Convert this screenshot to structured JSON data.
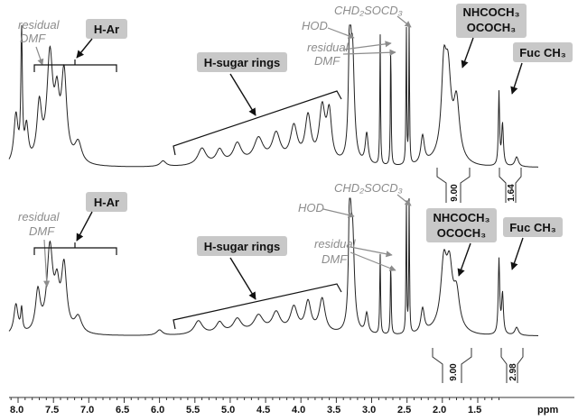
{
  "chart_data": {
    "type": "line",
    "title": "",
    "xlabel": "ppm",
    "ylabel": "",
    "xlim": [
      8.4,
      0.75
    ],
    "x_reversed": true,
    "grid": false,
    "x_ticks": [
      "8.0",
      "7.5",
      "7.0",
      "6.5",
      "6.0",
      "5.5",
      "5.0",
      "4.5",
      "4.0",
      "3.5",
      "3.0",
      "2.5",
      "2.0",
      "1.5",
      "ppm"
    ],
    "x_tick_values": [
      8.0,
      7.5,
      7.0,
      6.5,
      6.0,
      5.5,
      5.0,
      4.5,
      4.0,
      3.5,
      3.0,
      2.5,
      2.0,
      1.5
    ],
    "spectra": [
      {
        "id": "top",
        "peaks": [
          {
            "x": 8.03,
            "h": 0.35,
            "w": 0.035
          },
          {
            "x": 7.95,
            "h": 0.95,
            "w": 0.012
          },
          {
            "x": 7.88,
            "h": 0.25,
            "w": 0.03
          },
          {
            "x": 7.7,
            "h": 0.4,
            "w": 0.04
          },
          {
            "x": 7.55,
            "h": 0.75,
            "w": 0.05
          },
          {
            "x": 7.45,
            "h": 0.38,
            "w": 0.04
          },
          {
            "x": 7.35,
            "h": 0.62,
            "w": 0.045
          },
          {
            "x": 7.15,
            "h": 0.15,
            "w": 0.06
          },
          {
            "x": 5.95,
            "h": 0.04,
            "w": 0.05
          },
          {
            "x": 5.4,
            "h": 0.12,
            "w": 0.07
          },
          {
            "x": 5.15,
            "h": 0.1,
            "w": 0.06
          },
          {
            "x": 4.9,
            "h": 0.14,
            "w": 0.07
          },
          {
            "x": 4.6,
            "h": 0.17,
            "w": 0.08
          },
          {
            "x": 4.35,
            "h": 0.2,
            "w": 0.07
          },
          {
            "x": 4.1,
            "h": 0.25,
            "w": 0.06
          },
          {
            "x": 3.9,
            "h": 0.32,
            "w": 0.05
          },
          {
            "x": 3.7,
            "h": 0.38,
            "w": 0.05
          },
          {
            "x": 3.6,
            "h": 0.34,
            "w": 0.04
          },
          {
            "x": 3.31,
            "h": 0.98,
            "w": 0.018
          },
          {
            "x": 3.27,
            "h": 0.75,
            "w": 0.03
          },
          {
            "x": 3.07,
            "h": 0.22,
            "w": 0.025
          },
          {
            "x": 2.88,
            "h": 0.95,
            "w": 0.006
          },
          {
            "x": 2.73,
            "h": 0.94,
            "w": 0.006
          },
          {
            "x": 2.51,
            "h": 1.0,
            "w": 0.006
          },
          {
            "x": 2.47,
            "h": 1.0,
            "w": 0.006
          },
          {
            "x": 2.28,
            "h": 0.2,
            "w": 0.03
          },
          {
            "x": 1.98,
            "h": 0.55,
            "w": 0.04
          },
          {
            "x": 1.92,
            "h": 0.55,
            "w": 0.05
          },
          {
            "x": 1.8,
            "h": 0.4,
            "w": 0.05
          },
          {
            "x": 1.2,
            "h": 0.52,
            "w": 0.01
          },
          {
            "x": 1.15,
            "h": 0.3,
            "w": 0.015
          },
          {
            "x": 0.95,
            "h": 0.07,
            "w": 0.03
          }
        ]
      },
      {
        "id": "bottom",
        "peaks": [
          {
            "x": 8.03,
            "h": 0.22,
            "w": 0.035
          },
          {
            "x": 7.95,
            "h": 0.17,
            "w": 0.015
          },
          {
            "x": 7.72,
            "h": 0.3,
            "w": 0.04
          },
          {
            "x": 7.55,
            "h": 0.62,
            "w": 0.05
          },
          {
            "x": 7.45,
            "h": 0.28,
            "w": 0.04
          },
          {
            "x": 7.35,
            "h": 0.48,
            "w": 0.045
          },
          {
            "x": 7.15,
            "h": 0.12,
            "w": 0.06
          },
          {
            "x": 6.0,
            "h": 0.04,
            "w": 0.05
          },
          {
            "x": 5.45,
            "h": 0.1,
            "w": 0.07
          },
          {
            "x": 5.15,
            "h": 0.08,
            "w": 0.06
          },
          {
            "x": 4.9,
            "h": 0.1,
            "w": 0.07
          },
          {
            "x": 4.6,
            "h": 0.12,
            "w": 0.08
          },
          {
            "x": 4.35,
            "h": 0.14,
            "w": 0.07
          },
          {
            "x": 4.1,
            "h": 0.18,
            "w": 0.06
          },
          {
            "x": 3.9,
            "h": 0.22,
            "w": 0.05
          },
          {
            "x": 3.7,
            "h": 0.25,
            "w": 0.05
          },
          {
            "x": 3.31,
            "h": 0.98,
            "w": 0.018
          },
          {
            "x": 3.27,
            "h": 0.7,
            "w": 0.03
          },
          {
            "x": 3.07,
            "h": 0.15,
            "w": 0.025
          },
          {
            "x": 2.88,
            "h": 0.6,
            "w": 0.007
          },
          {
            "x": 2.73,
            "h": 0.55,
            "w": 0.007
          },
          {
            "x": 2.51,
            "h": 1.0,
            "w": 0.006
          },
          {
            "x": 2.47,
            "h": 1.0,
            "w": 0.006
          },
          {
            "x": 2.28,
            "h": 0.18,
            "w": 0.03
          },
          {
            "x": 1.98,
            "h": 0.45,
            "w": 0.05
          },
          {
            "x": 1.9,
            "h": 0.4,
            "w": 0.05
          },
          {
            "x": 1.8,
            "h": 0.25,
            "w": 0.05
          },
          {
            "x": 1.2,
            "h": 0.55,
            "w": 0.012
          },
          {
            "x": 1.15,
            "h": 0.3,
            "w": 0.015
          },
          {
            "x": 0.95,
            "h": 0.06,
            "w": 0.03
          }
        ]
      }
    ],
    "annotations_top": {
      "residual_dmf_1": "residual",
      "residual_dmf_2": "DMF",
      "h_ar": "H-Ar",
      "h_sugar": "H-sugar rings",
      "hod": "HOD",
      "chd2socd3": "CHD₂SOCD₃",
      "residual_dmf_b1": "residual",
      "residual_dmf_b2": "DMF",
      "nhcoch3": "NHCOCH₃",
      "ococh3": "OCOCH₃",
      "fuc": "Fuc CH₃"
    },
    "annotations_bottom": {
      "residual_dmf_1": "residual",
      "residual_dmf_2": "DMF",
      "h_ar": "H-Ar",
      "h_sugar": "H-sugar rings",
      "hod": "HOD",
      "chd2socd3": "CHD₂SOCD₃",
      "residual_dmf_b1": "residual",
      "residual_dmf_b2": "DMF",
      "nhcoch3": "NHCOCH₃",
      "ococh3": "OCOCH₃",
      "fuc": "Fuc CH₃"
    },
    "integrals_top": [
      "9.00",
      "1.64"
    ],
    "integrals_bottom": [
      "9.00",
      "2.98"
    ]
  }
}
